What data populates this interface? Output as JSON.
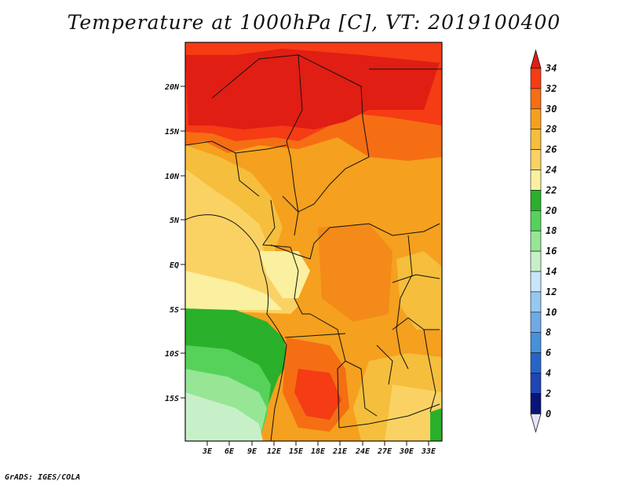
{
  "title": "Temperature at 1000hPa [C], VT: 2019100400",
  "footer": "GrADS: IGES/COLA",
  "map": {
    "lon_ticks": [
      "3E",
      "6E",
      "9E",
      "12E",
      "15E",
      "18E",
      "21E",
      "24E",
      "27E",
      "30E",
      "33E"
    ],
    "lat_ticks": [
      "20N",
      "15N",
      "10N",
      "5N",
      "EQ",
      "5S",
      "10S",
      "15S"
    ]
  },
  "colorbar": {
    "labels": [
      "34",
      "32",
      "30",
      "28",
      "26",
      "24",
      "22",
      "20",
      "18",
      "16",
      "14",
      "12",
      "10",
      "8",
      "6",
      "4",
      "2",
      "0"
    ],
    "colors": [
      "#e01e14",
      "#f53c14",
      "#f56e14",
      "#f5a01e",
      "#f5be3c",
      "#fad264",
      "#faf0a0",
      "#2ab02a",
      "#56d25a",
      "#96e696",
      "#c8f0c8",
      "#c8e6fa",
      "#96c8f0",
      "#6eaae6",
      "#4690dc",
      "#2864c8",
      "#1e46b4",
      "#0a1478",
      "#e6e6fa"
    ]
  }
}
